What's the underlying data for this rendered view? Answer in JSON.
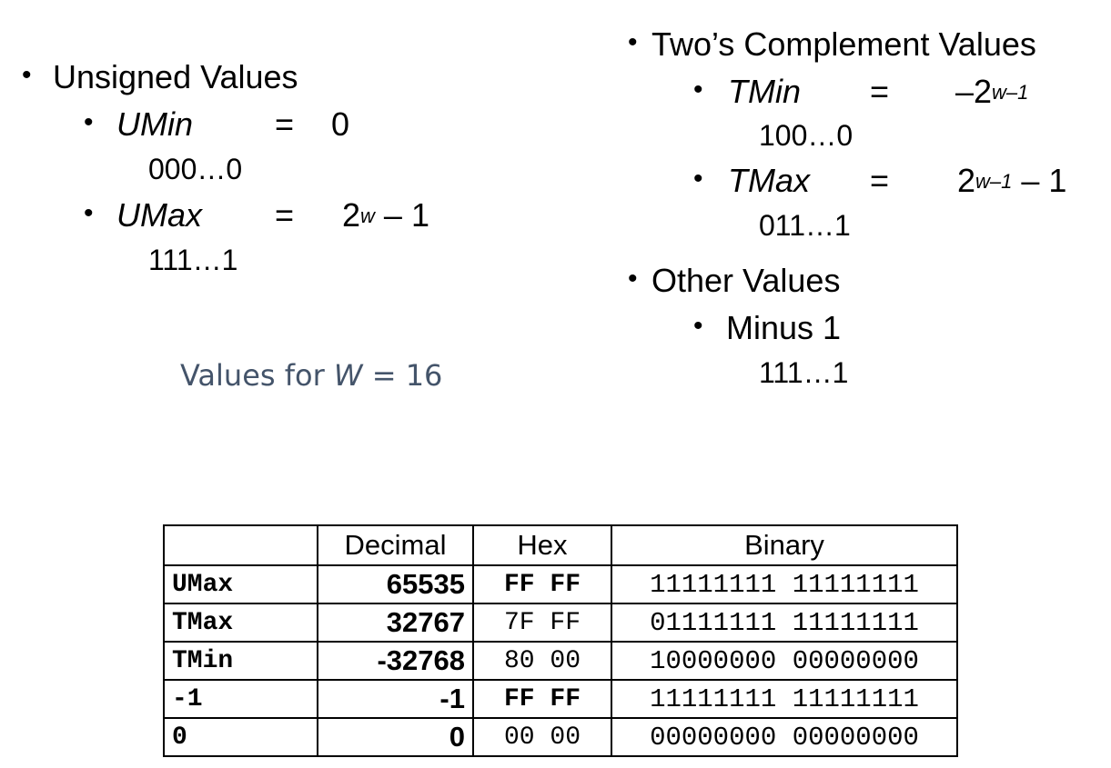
{
  "unsigned": {
    "heading": "Unsigned Values",
    "umin": {
      "label": "UMin",
      "eq": "=",
      "value": "0",
      "bits": "000…0"
    },
    "umax": {
      "label": "UMax",
      "eq": "=",
      "value_base": "2",
      "value_exp": "w",
      "value_tail": " – 1",
      "bits": "111…1"
    }
  },
  "twos": {
    "heading": "Two’s Complement Values",
    "tmin": {
      "label": "TMin",
      "eq": "=",
      "value_base": "–2",
      "value_exp": "w–1",
      "bits": "100…0"
    },
    "tmax": {
      "label": "TMax",
      "eq": "=",
      "value_base": "2",
      "value_exp": "w–1",
      "value_tail": " – 1",
      "bits": "011…1"
    }
  },
  "other": {
    "heading": "Other Values",
    "minus1": {
      "label": "Minus 1",
      "bits": "111…1"
    }
  },
  "note": {
    "prefix": "Values for ",
    "var": "W",
    "suffix": " = 16"
  },
  "table": {
    "headers": [
      "",
      "Decimal",
      "Hex",
      "Binary"
    ],
    "rows": [
      {
        "name": "UMax",
        "dec": "65535",
        "hex": "FF FF",
        "bin": "11111111 11111111"
      },
      {
        "name": "TMax",
        "dec": "32767",
        "hex": "7F FF",
        "bin": "01111111 11111111"
      },
      {
        "name": "TMin",
        "dec": "-32768",
        "hex": "80 00",
        "bin": "10000000 00000000"
      },
      {
        "name": "-1",
        "dec": "-1",
        "hex": "FF FF",
        "bin": "11111111 11111111"
      },
      {
        "name": "0",
        "dec": "0",
        "hex": "00 00",
        "bin": "00000000 00000000"
      }
    ]
  }
}
